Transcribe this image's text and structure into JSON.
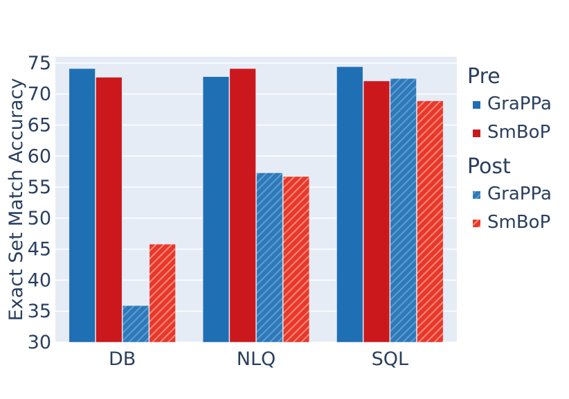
{
  "chart_data": {
    "type": "bar",
    "categories": [
      "DB",
      "NLQ",
      "SQL"
    ],
    "ylabel": "Exact Set Match Accuracy",
    "xlabel": "",
    "ylim": [
      30,
      76
    ],
    "yticks": [
      30,
      35,
      40,
      45,
      50,
      55,
      60,
      65,
      70,
      75
    ],
    "grid": true,
    "legend_position": "right",
    "background_color": "#e5ecf6",
    "series": [
      {
        "group": "Pre",
        "name": "GraPPa",
        "values": [
          74.1,
          72.8,
          74.4
        ],
        "color": "#1f6fb4",
        "pattern": "none"
      },
      {
        "group": "Pre",
        "name": "SmBoP",
        "values": [
          72.7,
          74.1,
          72.1
        ],
        "color": "#cb181d",
        "pattern": "none"
      },
      {
        "group": "Post",
        "name": "GraPPa",
        "values": [
          35.9,
          57.3,
          72.5
        ],
        "color": "#3a86c4",
        "pattern": "diagonal-hatch"
      },
      {
        "group": "Post",
        "name": "SmBoP",
        "values": [
          45.8,
          56.7,
          68.9
        ],
        "color": "#f24b36",
        "pattern": "diagonal-hatch"
      }
    ],
    "legend": [
      {
        "title": "Pre",
        "entries": [
          "GraPPa",
          "SmBoP"
        ]
      },
      {
        "title": "Post",
        "entries": [
          "GraPPa",
          "SmBoP"
        ]
      }
    ]
  }
}
